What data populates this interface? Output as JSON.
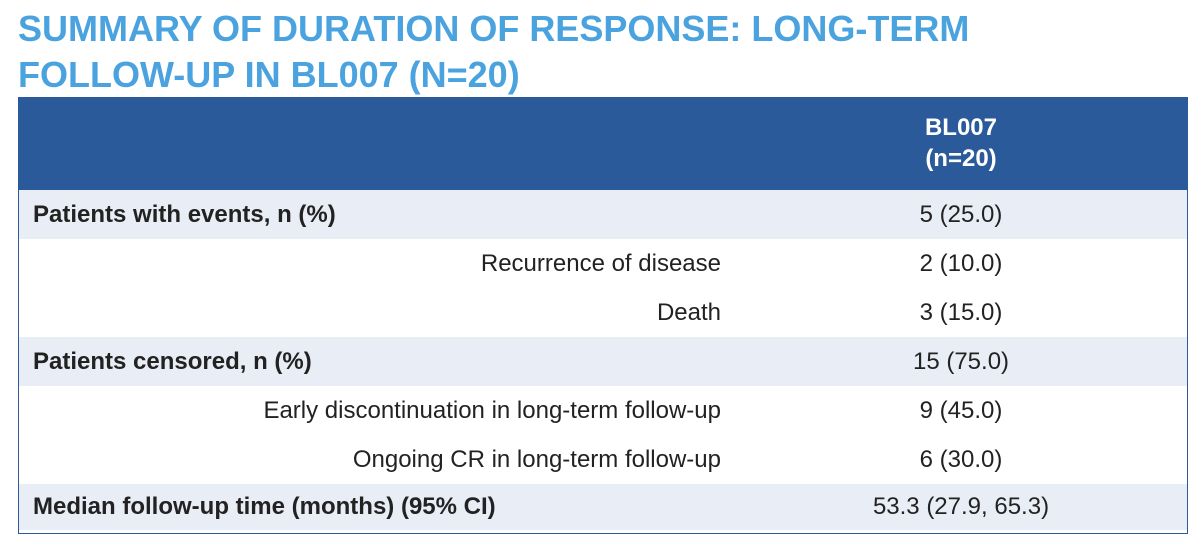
{
  "title": {
    "line1": "SUMMARY OF DURATION OF RESPONSE: LONG-TERM",
    "line2": "FOLLOW-UP IN BL007 (N=20)"
  },
  "table": {
    "header": {
      "line1": "BL007",
      "line2": "(n=20)"
    },
    "rows": [
      {
        "label": "Patients with events, n (%)",
        "value": "5 (25.0)",
        "style": "bold"
      },
      {
        "label": "Recurrence of disease",
        "value": "2 (10.0)",
        "style": "sub"
      },
      {
        "label": "Death",
        "value": "3 (15.0)",
        "style": "sub"
      },
      {
        "label": "Patients censored, n (%)",
        "value": "15 (75.0)",
        "style": "bold"
      },
      {
        "label": "Early discontinuation in long-term follow-up",
        "value": "9 (45.0)",
        "style": "sub"
      },
      {
        "label": "Ongoing CR in long-term follow-up",
        "value": "6 (30.0)",
        "style": "sub"
      },
      {
        "label": "Median follow-up time (months) (95% CI)",
        "value": "53.3 (27.9, 65.3)",
        "style": "bold"
      }
    ]
  },
  "colors": {
    "title": "#4aa3df",
    "header_bg": "#2a5a9a",
    "row_shaded": "#e9eef6"
  }
}
